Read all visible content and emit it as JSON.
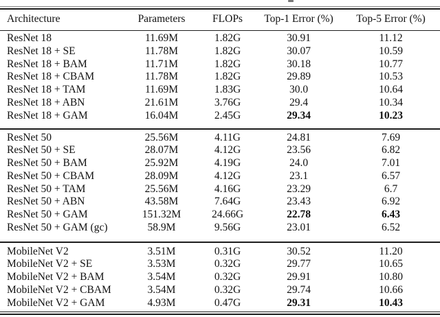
{
  "colors": {
    "background": "#ffffff",
    "text": "#111111",
    "rule": "#1c1c1c"
  },
  "table": {
    "columns": {
      "architecture": "Architecture",
      "parameters": "Parameters",
      "flops": "FLOPs",
      "top1": "Top-1 Error (%)",
      "top5": "Top-5 Error (%)"
    },
    "groups": [
      {
        "rows": [
          {
            "architecture": "ResNet 18",
            "parameters": "11.69M",
            "flops": "1.82G",
            "top1": "30.91",
            "top5": "11.12",
            "bold": false
          },
          {
            "architecture": "ResNet 18 + SE",
            "parameters": "11.78M",
            "flops": "1.82G",
            "top1": "30.07",
            "top5": "10.59",
            "bold": false
          },
          {
            "architecture": "ResNet 18 + BAM",
            "parameters": "11.71M",
            "flops": "1.82G",
            "top1": "30.18",
            "top5": "10.77",
            "bold": false
          },
          {
            "architecture": "ResNet 18 + CBAM",
            "parameters": "11.78M",
            "flops": "1.82G",
            "top1": "29.89",
            "top5": "10.53",
            "bold": false
          },
          {
            "architecture": "ResNet 18 + TAM",
            "parameters": "11.69M",
            "flops": "1.83G",
            "top1": "30.0",
            "top5": "10.64",
            "bold": false
          },
          {
            "architecture": "ResNet 18 + ABN",
            "parameters": "21.61M",
            "flops": "3.76G",
            "top1": "29.4",
            "top5": "10.34",
            "bold": false
          },
          {
            "architecture": "ResNet 18 + GAM",
            "parameters": "16.04M",
            "flops": "2.45G",
            "top1": "29.34",
            "top5": "10.23",
            "bold": true
          }
        ]
      },
      {
        "rows": [
          {
            "architecture": "ResNet 50",
            "parameters": "25.56M",
            "flops": "4.11G",
            "top1": "24.81",
            "top5": "7.69",
            "bold": false
          },
          {
            "architecture": "ResNet 50 + SE",
            "parameters": "28.07M",
            "flops": "4.12G",
            "top1": "23.56",
            "top5": "6.82",
            "bold": false
          },
          {
            "architecture": "ResNet 50 + BAM",
            "parameters": "25.92M",
            "flops": "4.19G",
            "top1": "24.0",
            "top5": "7.01",
            "bold": false
          },
          {
            "architecture": "ResNet 50 + CBAM",
            "parameters": "28.09M",
            "flops": "4.12G",
            "top1": "23.1",
            "top5": "6.57",
            "bold": false
          },
          {
            "architecture": "ResNet 50 + TAM",
            "parameters": "25.56M",
            "flops": "4.16G",
            "top1": "23.29",
            "top5": "6.7",
            "bold": false
          },
          {
            "architecture": "ResNet 50 + ABN",
            "parameters": "43.58M",
            "flops": "7.64G",
            "top1": "23.43",
            "top5": "6.92",
            "bold": false
          },
          {
            "architecture": "ResNet 50 + GAM",
            "parameters": "151.32M",
            "flops": "24.66G",
            "top1": "22.78",
            "top5": "6.43",
            "bold": true
          },
          {
            "architecture": "ResNet 50 + GAM (gc)",
            "parameters": "58.9M",
            "flops": "9.56G",
            "top1": "23.01",
            "top5": "6.52",
            "bold": false
          }
        ]
      },
      {
        "rows": [
          {
            "architecture": "MobileNet V2",
            "parameters": "3.51M",
            "flops": "0.31G",
            "top1": "30.52",
            "top5": "11.20",
            "bold": false
          },
          {
            "architecture": "MobileNet V2 + SE",
            "parameters": "3.53M",
            "flops": "0.32G",
            "top1": "29.77",
            "top5": "10.65",
            "bold": false
          },
          {
            "architecture": "MobileNet V2 + BAM",
            "parameters": "3.54M",
            "flops": "0.32G",
            "top1": "29.91",
            "top5": "10.80",
            "bold": false
          },
          {
            "architecture": "MobileNet V2 + CBAM",
            "parameters": "3.54M",
            "flops": "0.32G",
            "top1": "29.74",
            "top5": "10.66",
            "bold": false
          },
          {
            "architecture": "MobileNet V2 + GAM",
            "parameters": "4.93M",
            "flops": "0.47G",
            "top1": "29.31",
            "top5": "10.43",
            "bold": true
          }
        ]
      }
    ]
  }
}
